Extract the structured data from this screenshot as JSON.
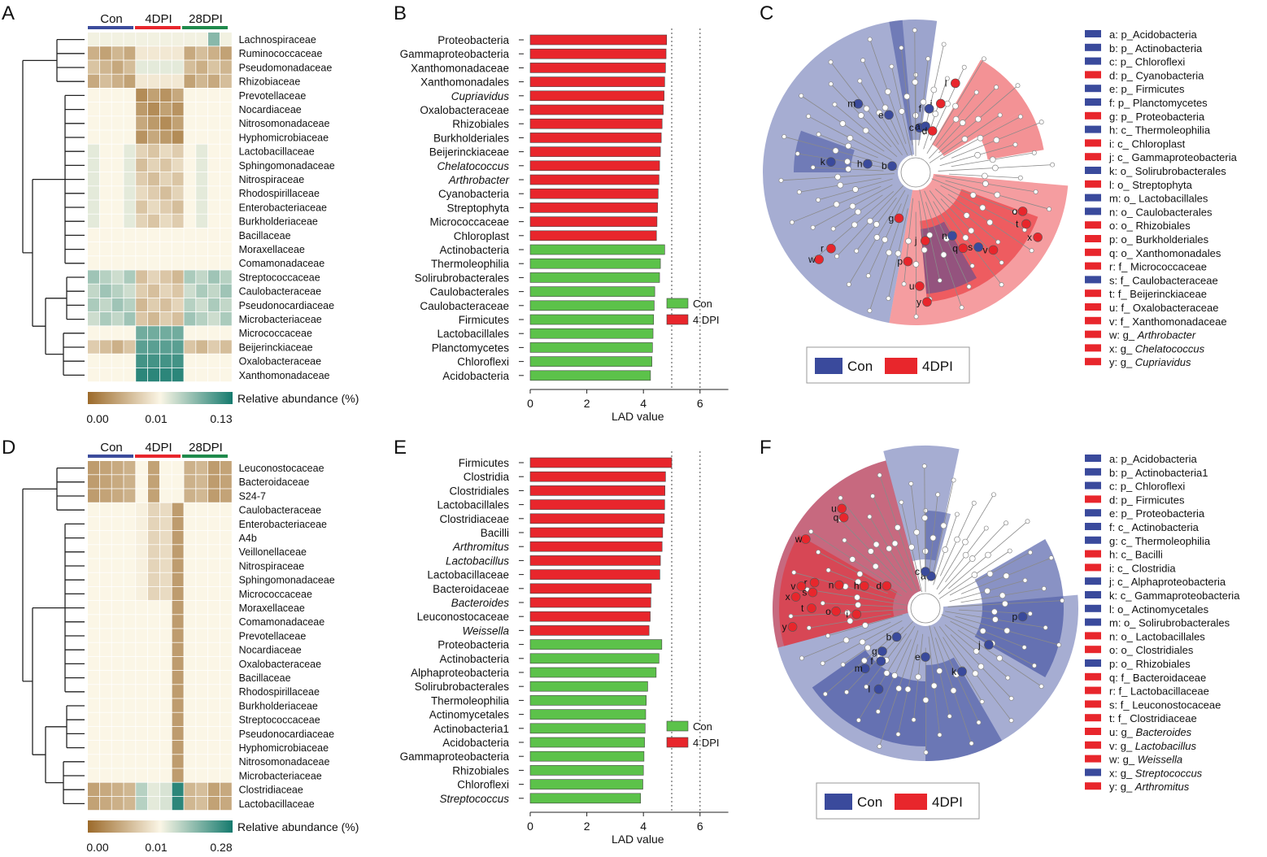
{
  "panels": {
    "A": "A",
    "B": "B",
    "C": "C",
    "D": "D",
    "E": "E",
    "F": "F"
  },
  "colors": {
    "con_heat": "#3c4c9c",
    "dpi4_heat": "#e8262c",
    "dpi28_heat": "#1f8a4c",
    "bar_red": "#e8262c",
    "bar_green": "#5cc24a",
    "clad_blue": "#3a4a9c",
    "clad_red": "#e8262c",
    "heat_low": "#9c6a2a",
    "heat_mid": "#fbf6e6",
    "heat_high": "#157a6e"
  },
  "heatmap_A": {
    "groups": [
      "Con",
      "4DPI",
      "28DPI"
    ],
    "colorbar_title": "Relative abundance (%)",
    "colorbar_ticks": [
      "0.00",
      "0.01",
      "0.13"
    ],
    "rows": [
      "Lachnospiraceae",
      "Ruminococcaceae",
      "Pseudomonadaceae",
      "Rhizobiaceae",
      "Prevotellaceae",
      "Nocardiaceae",
      "Nitrosomonadaceae",
      "Hyphomicrobiaceae",
      "Lactobacillaceae",
      "Sphingomonadaceae",
      "Nitrospiraceae",
      "Rhodospirillaceae",
      "Enterobacteriaceae",
      "Burkholderiaceae",
      "Bacillaceae",
      "Moraxellaceae",
      "Comamonadaceae",
      "Streptococcaceae",
      "Caulobacteraceae",
      "Pseudonocardiaceae",
      "Microbacteriaceae",
      "Micrococcaceae",
      "Beijerinckiaceae",
      "Oxalobacteraceae",
      "Xanthomonadaceae"
    ]
  },
  "heatmap_D": {
    "groups": [
      "Con",
      "4DPI",
      "28DPI"
    ],
    "colorbar_title": "Relative abundance (%)",
    "colorbar_ticks": [
      "0.00",
      "0.01",
      "0.28"
    ],
    "rows": [
      "Leuconostocaceae",
      "Bacteroidaceae",
      "S24-7",
      "Caulobacteraceae",
      "Enterobacteriaceae",
      "A4b",
      "Veillonellaceae",
      "Nitrospiraceae",
      "Sphingomonadaceae",
      "Micrococcaceae",
      "Moraxellaceae",
      "Comamonadaceae",
      "Prevotellaceae",
      "Nocardiaceae",
      "Oxalobacteraceae",
      "Bacillaceae",
      "Rhodospirillaceae",
      "Burkholderiaceae",
      "Streptococcaceae",
      "Pseudonocardiaceae",
      "Hyphomicrobiaceae",
      "Nitrosomonadaceae",
      "Microbacteriaceae",
      "Clostridiaceae",
      "Lactobacillaceae"
    ]
  },
  "chart_data": [
    {
      "type": "bar",
      "panel": "B",
      "orientation": "horizontal",
      "xlabel": "LAD value",
      "xlim": [
        0,
        7
      ],
      "xticks": [
        0,
        2,
        4,
        6
      ],
      "reference_lines": [
        5,
        6
      ],
      "legend": [
        {
          "name": "Con",
          "color": "#5cc24a"
        },
        {
          "name": "4 DPI",
          "color": "#e8262c"
        }
      ],
      "categories": [
        "Proteobacteria",
        "Gammaproteobacteria",
        "Xanthomonadaceae",
        "Xanthomonadales",
        "Cupriavidus",
        "Oxalobacteraceae",
        "Rhizobiales",
        "Burkholderiales",
        "Beijerinckiaceae",
        "Chelatococcus",
        "Arthrobacter",
        "Cyanobacteria",
        "Streptophyta",
        "Micrococcaceae",
        "Chloroplast",
        "Actinobacteria",
        "Thermoleophilia",
        "Solirubrobacterales",
        "Caulobacterales",
        "Caulobacteraceae",
        "Firmicutes",
        "Lactobacillales",
        "Planctomycetes",
        "Chloroflexi",
        "Acidobacteria"
      ],
      "italic": [
        "Cupriavidus",
        "Chelatococcus",
        "Arthrobacter"
      ],
      "groups": [
        "4 DPI",
        "4 DPI",
        "4 DPI",
        "4 DPI",
        "4 DPI",
        "4 DPI",
        "4 DPI",
        "4 DPI",
        "4 DPI",
        "4 DPI",
        "4 DPI",
        "4 DPI",
        "4 DPI",
        "4 DPI",
        "4 DPI",
        "Con",
        "Con",
        "Con",
        "Con",
        "Con",
        "Con",
        "Con",
        "Con",
        "Con",
        "Con"
      ],
      "values": [
        4.82,
        4.8,
        4.78,
        4.75,
        4.73,
        4.7,
        4.66,
        4.63,
        4.6,
        4.57,
        4.55,
        4.52,
        4.5,
        4.48,
        4.46,
        4.75,
        4.6,
        4.57,
        4.4,
        4.38,
        4.36,
        4.34,
        4.32,
        4.3,
        4.25
      ]
    },
    {
      "type": "bar",
      "panel": "E",
      "orientation": "horizontal",
      "xlabel": "LAD value",
      "xlim": [
        0,
        7
      ],
      "xticks": [
        0,
        2,
        4,
        6
      ],
      "reference_lines": [
        5,
        6
      ],
      "legend": [
        {
          "name": "Con",
          "color": "#5cc24a"
        },
        {
          "name": "4 DPI",
          "color": "#e8262c"
        }
      ],
      "categories": [
        "Firmicutes",
        "Clostridia",
        "Clostridiales",
        "Lactobacillales",
        "Clostridiaceae",
        "Bacilli",
        "Arthromitus",
        "Lactobacillus",
        "Lactobacillaceae",
        "Bacteroidaceae",
        "Bacteroides",
        "Leuconostocaceae",
        "Weissella",
        "Proteobacteria",
        "Actinobacteria",
        "Alphaproteobacteria",
        "Solirubrobacterales",
        "Thermoleophilia",
        "Actinomycetales",
        "Actinobacteria1",
        "Acidobacteria",
        "Gammaproteobacteria",
        "Rhizobiales",
        "Chloroflexi",
        "Streptococcus"
      ],
      "italic": [
        "Arthromitus",
        "Lactobacillus",
        "Bacteroides",
        "Weissella",
        "Streptococcus"
      ],
      "groups": [
        "4 DPI",
        "4 DPI",
        "4 DPI",
        "4 DPI",
        "4 DPI",
        "4 DPI",
        "4 DPI",
        "4 DPI",
        "4 DPI",
        "4 DPI",
        "4 DPI",
        "4 DPI",
        "4 DPI",
        "Con",
        "Con",
        "Con",
        "Con",
        "Con",
        "Con",
        "Con",
        "Con",
        "Con",
        "Con",
        "Con",
        "Con"
      ],
      "values": [
        5.0,
        4.78,
        4.76,
        4.75,
        4.74,
        4.68,
        4.66,
        4.6,
        4.58,
        4.28,
        4.26,
        4.24,
        4.2,
        4.65,
        4.55,
        4.45,
        4.15,
        4.1,
        4.08,
        4.06,
        4.04,
        4.02,
        4.0,
        3.98,
        3.9
      ]
    }
  ],
  "cladogram_C": {
    "legend_con": "Con",
    "legend_dpi": "4DPI",
    "key": [
      {
        "prefix": "a: p_",
        "name": "Acidobacteria",
        "group": "con"
      },
      {
        "prefix": "b: p_ ",
        "name": "Actinobacteria",
        "group": "con"
      },
      {
        "prefix": "c: p_ ",
        "name": "Chloroflexi",
        "group": "con"
      },
      {
        "prefix": "d: p_ ",
        "name": "Cyanobacteria",
        "group": "dpi"
      },
      {
        "prefix": "e: p_ ",
        "name": "Firmicutes",
        "group": "con"
      },
      {
        "prefix": "f: p_ ",
        "name": "Planctomycetes",
        "group": "con"
      },
      {
        "prefix": "g: p_ ",
        "name": "Proteobacteria",
        "group": "dpi"
      },
      {
        "prefix": "h: c_ ",
        "name": "Thermoleophilia",
        "group": "con"
      },
      {
        "prefix": "i: c_ ",
        "name": "Chloroplast",
        "group": "dpi"
      },
      {
        "prefix": "j: c_ ",
        "name": "Gammaproteobacteria",
        "group": "dpi"
      },
      {
        "prefix": "k: o_ ",
        "name": "Solirubrobacterales",
        "group": "con"
      },
      {
        "prefix": "l: o_ ",
        "name": "Streptophyta",
        "group": "dpi"
      },
      {
        "prefix": "m: o_ ",
        "name": "Lactobacillales",
        "group": "con"
      },
      {
        "prefix": "n: o_ ",
        "name": "Caulobacterales",
        "group": "con"
      },
      {
        "prefix": "o: o_ ",
        "name": "Rhizobiales",
        "group": "dpi"
      },
      {
        "prefix": "p: o_ ",
        "name": "Burkholderiales",
        "group": "dpi"
      },
      {
        "prefix": "q: o_ ",
        "name": "Xanthomonadales",
        "group": "dpi"
      },
      {
        "prefix": "r: f_ ",
        "name": "Micrococcaceae",
        "group": "dpi"
      },
      {
        "prefix": "s: f_ ",
        "name": "Caulobacteraceae",
        "group": "con"
      },
      {
        "prefix": "t: f_ ",
        "name": "Beijerinckiaceae",
        "group": "dpi"
      },
      {
        "prefix": "u: f_ ",
        "name": "Oxalobacteraceae",
        "group": "dpi"
      },
      {
        "prefix": "v: f_ ",
        "name": "Xanthomonadaceae",
        "group": "dpi"
      },
      {
        "prefix": "w: g_ ",
        "name": "Arthrobacter",
        "group": "dpi",
        "italic": true
      },
      {
        "prefix": "x: g_ ",
        "name": "Chelatococcus",
        "group": "dpi",
        "italic": true
      },
      {
        "prefix": "y: g_ ",
        "name": "Cupriavidus",
        "group": "dpi",
        "italic": true
      }
    ]
  },
  "cladogram_F": {
    "legend_con": "Con",
    "legend_dpi": "4DPI",
    "key": [
      {
        "prefix": "a: p_",
        "name": "Acidobacteria",
        "group": "con"
      },
      {
        "prefix": "b: p_ ",
        "name": "Actinobacteria1",
        "group": "con"
      },
      {
        "prefix": "c: p_ ",
        "name": "Chloroflexi",
        "group": "con"
      },
      {
        "prefix": "d: p_ ",
        "name": "Firmicutes",
        "group": "dpi"
      },
      {
        "prefix": "e: p_ ",
        "name": "Proteobacteria",
        "group": "con"
      },
      {
        "prefix": "f: c_ ",
        "name": "Actinobacteria",
        "group": "con"
      },
      {
        "prefix": "g: c_ ",
        "name": "Thermoleophilia",
        "group": "con"
      },
      {
        "prefix": "h: c_ ",
        "name": "Bacilli",
        "group": "dpi"
      },
      {
        "prefix": "i: c_ ",
        "name": "Clostridia",
        "group": "dpi"
      },
      {
        "prefix": "j: c_ ",
        "name": "Alphaproteobacteria",
        "group": "con"
      },
      {
        "prefix": "k: c_ ",
        "name": "Gammaproteobacteria",
        "group": "con"
      },
      {
        "prefix": "l: o_ ",
        "name": "Actinomycetales",
        "group": "con"
      },
      {
        "prefix": "m: o_ ",
        "name": "Solirubrobacterales",
        "group": "con"
      },
      {
        "prefix": "n: o_ ",
        "name": "Lactobacillales",
        "group": "dpi"
      },
      {
        "prefix": "o: o_ ",
        "name": "Clostridiales",
        "group": "dpi"
      },
      {
        "prefix": "p: o_ ",
        "name": "Rhizobiales",
        "group": "con"
      },
      {
        "prefix": "q: f_ ",
        "name": "Bacteroidaceae",
        "group": "dpi"
      },
      {
        "prefix": "r: f_ ",
        "name": "Lactobacillaceae",
        "group": "dpi"
      },
      {
        "prefix": "s: f_ ",
        "name": "Leuconostocaceae",
        "group": "dpi"
      },
      {
        "prefix": "t: f_ ",
        "name": "Clostridiaceae",
        "group": "dpi"
      },
      {
        "prefix": "u: g_ ",
        "name": "Bacteroides",
        "group": "dpi",
        "italic": true
      },
      {
        "prefix": "v: g_ ",
        "name": "Lactobacillus",
        "group": "dpi",
        "italic": true
      },
      {
        "prefix": "w: g_ ",
        "name": "Weissella",
        "group": "dpi",
        "italic": true
      },
      {
        "prefix": "x: g_ ",
        "name": "Streptococcus",
        "group": "con",
        "italic": true
      },
      {
        "prefix": "y: g_ ",
        "name": "Arthromitus",
        "group": "dpi",
        "italic": true
      }
    ]
  }
}
